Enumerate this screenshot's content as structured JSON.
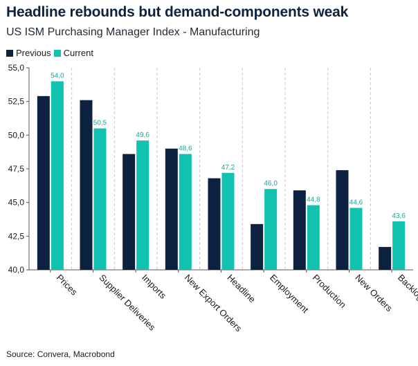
{
  "header": {
    "title": "Headline rebounds but demand-components weak",
    "subtitle": "US ISM Purchasing Manager Index - Manufacturing"
  },
  "legend": {
    "previous": "Previous",
    "current": "Current"
  },
  "footer": {
    "source": "Source: Convera, Macrobond"
  },
  "colors": {
    "previous": "#0d2240",
    "current": "#11c2b0",
    "label": "#11a99a",
    "grid": "#c8c8c8"
  },
  "chart_data": {
    "type": "bar",
    "title": "Headline rebounds but demand-components weak",
    "subtitle": "US ISM Purchasing Manager Index - Manufacturing",
    "categories": [
      "Prices",
      "Supplier Deliveries",
      "Imports",
      "New Export Orders",
      "Headline",
      "Employment",
      "Production",
      "New Orders",
      "Backlog"
    ],
    "series": [
      {
        "name": "Previous",
        "values": [
          52.9,
          52.6,
          48.6,
          49.0,
          46.8,
          43.4,
          45.9,
          47.4,
          41.7
        ]
      },
      {
        "name": "Current",
        "values": [
          54.0,
          50.5,
          49.6,
          48.6,
          47.2,
          46.0,
          44.8,
          44.6,
          43.6
        ],
        "labels": [
          "54,0",
          "50,5",
          "49,6",
          "48,6",
          "47,2",
          "46,0",
          "44,8",
          "44,6",
          "43,6"
        ]
      }
    ],
    "ylim": [
      40.0,
      55.0
    ],
    "yticks": [
      40.0,
      42.5,
      45.0,
      47.5,
      50.0,
      52.5,
      55.0
    ],
    "ytick_labels": [
      "40,0",
      "42,5",
      "45,0",
      "47,5",
      "50,0",
      "52,5",
      "55,0"
    ],
    "xlabel": "",
    "ylabel": "",
    "legend_position": "top-left",
    "grid": "vertical-dashed"
  }
}
